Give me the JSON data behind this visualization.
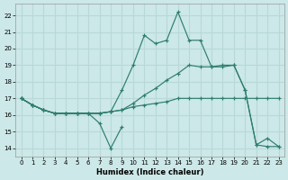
{
  "xlabel": "Humidex (Indice chaleur)",
  "xlim": [
    -0.5,
    23.5
  ],
  "ylim": [
    13.5,
    22.7
  ],
  "yticks": [
    14,
    15,
    16,
    17,
    18,
    19,
    20,
    21,
    22
  ],
  "xticks": [
    0,
    1,
    2,
    3,
    4,
    5,
    6,
    7,
    8,
    9,
    10,
    11,
    12,
    13,
    14,
    15,
    16,
    17,
    18,
    19,
    20,
    21,
    22,
    23
  ],
  "bg_color": "#cce8e8",
  "grid_color": "#b8d8d8",
  "line_color": "#2e7d6e",
  "figsize": [
    3.2,
    2.0
  ],
  "dpi": 100,
  "lines": [
    {
      "x": [
        0,
        1,
        2,
        3,
        4,
        5,
        6,
        7,
        8,
        9,
        10,
        11,
        12,
        13,
        14,
        15,
        16,
        17,
        18,
        19,
        20,
        21,
        22,
        23
      ],
      "y": [
        17.0,
        16.6,
        16.3,
        16.1,
        16.1,
        16.1,
        16.1,
        16.1,
        16.2,
        16.3,
        16.5,
        16.6,
        16.7,
        16.8,
        17.0,
        17.0,
        17.0,
        17.0,
        17.0,
        17.0,
        17.0,
        17.0,
        17.0,
        17.0
      ]
    },
    {
      "x": [
        0,
        1,
        2,
        3,
        4,
        5,
        6,
        7,
        8,
        9,
        10,
        11,
        12,
        13,
        14,
        15,
        16,
        17,
        18,
        19,
        20,
        21,
        22,
        23
      ],
      "y": [
        17.0,
        16.6,
        16.3,
        16.1,
        16.1,
        16.1,
        16.1,
        16.1,
        16.2,
        17.5,
        19.0,
        20.8,
        20.3,
        20.5,
        22.2,
        20.5,
        20.5,
        18.9,
        19.0,
        19.0,
        17.5,
        14.2,
        14.6,
        14.1
      ]
    },
    {
      "x": [
        0,
        1,
        2,
        3,
        4,
        5,
        6,
        7,
        8,
        9,
        10,
        11,
        12,
        13,
        14,
        15,
        16,
        17,
        18,
        19,
        20,
        21,
        22,
        23
      ],
      "y": [
        17.0,
        16.6,
        16.3,
        16.1,
        16.1,
        16.1,
        16.1,
        16.1,
        16.2,
        16.3,
        16.7,
        17.2,
        17.6,
        18.1,
        18.5,
        19.0,
        18.9,
        18.9,
        18.9,
        19.0,
        17.5,
        14.2,
        14.1,
        14.1
      ]
    },
    {
      "x": [
        0,
        1,
        2,
        3,
        4,
        5,
        6,
        7,
        8,
        9
      ],
      "y": [
        17.0,
        16.6,
        16.3,
        16.1,
        16.1,
        16.1,
        16.1,
        15.5,
        14.0,
        15.3
      ]
    }
  ]
}
